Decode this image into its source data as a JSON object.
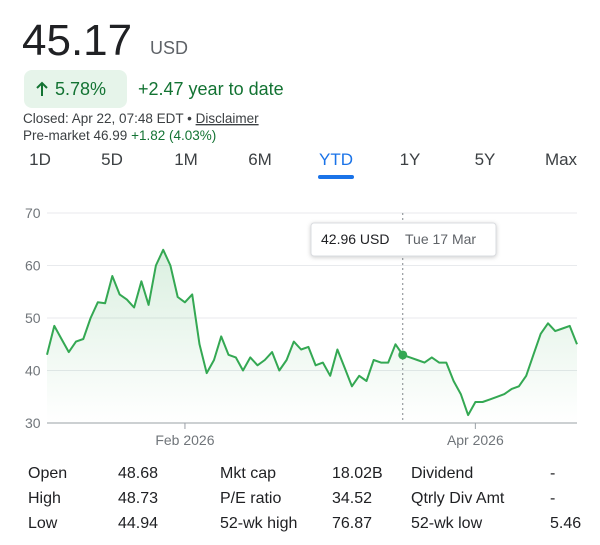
{
  "header": {
    "price": "45.17",
    "currency": "USD",
    "change_pct": "5.78%",
    "change_abs": "+2.47 year to date",
    "closed": "Closed: Apr 22, 07:48 EDT •",
    "disclaimer": "Disclaimer",
    "premarket": "Pre-market 46.99",
    "premarket_change": "+1.82 (4.03%)"
  },
  "tabs": {
    "items": [
      "1D",
      "5D",
      "1M",
      "6M",
      "YTD",
      "1Y",
      "5Y",
      "Max"
    ],
    "selected": "YTD"
  },
  "chart_data": {
    "type": "line",
    "color": "#34a853",
    "values": [
      43,
      48.5,
      46,
      43.5,
      45.5,
      46,
      50,
      53,
      52.8,
      58,
      54.5,
      53.5,
      52,
      57,
      52.5,
      60,
      63,
      60,
      54,
      53,
      54.5,
      45,
      39.5,
      42,
      46.5,
      43,
      42.5,
      40,
      42.5,
      41,
      42,
      43.5,
      40,
      42,
      45.5,
      44,
      44.5,
      41,
      41.5,
      39,
      44,
      40.5,
      37,
      39,
      38,
      42,
      41.5,
      41.5,
      45,
      42.96,
      42.5,
      42,
      41.5,
      42.5,
      41.5,
      41.5,
      38,
      35.5,
      31.5,
      34,
      34,
      34.5,
      35,
      35.5,
      36.5,
      37,
      39,
      43,
      47,
      49,
      47.5,
      48,
      48.5,
      45
    ],
    "xlim": [
      0,
      73
    ],
    "xticks": [
      {
        "value": 19,
        "label": "Feb 2026"
      },
      {
        "value": 59,
        "label": "Apr 2026"
      }
    ],
    "ylim": [
      30,
      70
    ],
    "yticks": [
      30,
      40,
      50,
      60,
      70
    ],
    "grid": true,
    "tooltip": {
      "x": 49,
      "label": "42.96 USD",
      "date": "Tue 17 Mar"
    }
  },
  "stats": {
    "rows": [
      [
        [
          "Open",
          "48.68"
        ],
        [
          "Mkt cap",
          "18.02B"
        ],
        [
          "Dividend",
          "-"
        ]
      ],
      [
        [
          "High",
          "48.73"
        ],
        [
          "P/E ratio",
          "34.52"
        ],
        [
          "Qtrly Div Amt",
          "-"
        ]
      ],
      [
        [
          "Low",
          "44.94"
        ],
        [
          "52-wk high",
          "76.87"
        ],
        [
          "52-wk low",
          "5.46"
        ]
      ]
    ]
  }
}
